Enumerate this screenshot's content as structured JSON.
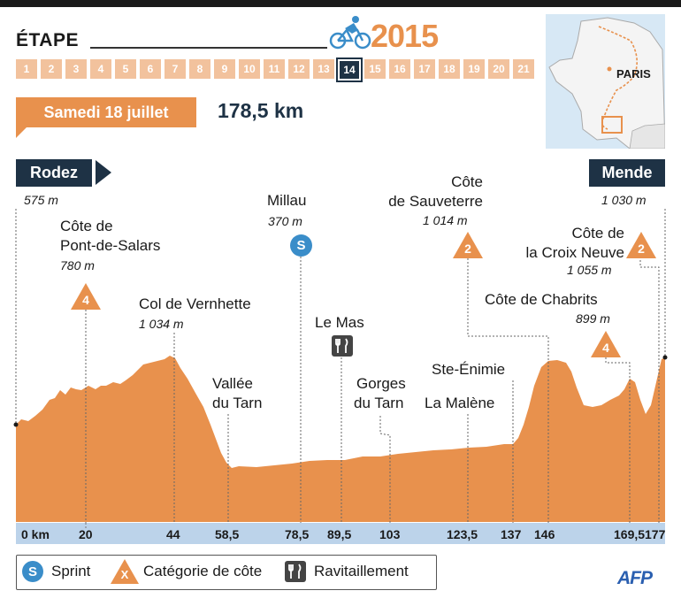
{
  "header": {
    "etape_label": "ÉTAPE",
    "year": "2015",
    "stages": [
      "1",
      "2",
      "3",
      "4",
      "5",
      "6",
      "7",
      "8",
      "9",
      "10",
      "11",
      "12",
      "13",
      "14",
      "15",
      "16",
      "17",
      "18",
      "19",
      "20",
      "21"
    ],
    "current_stage": "14",
    "date": "Samedi 18 juillet",
    "distance": "178,5 km"
  },
  "map": {
    "city_label": "PARIS"
  },
  "start": {
    "name": "Rodez",
    "altitude": "575 m"
  },
  "finish": {
    "name": "Mende",
    "altitude": "1 030 m"
  },
  "points": [
    {
      "name_l1": "Côte de",
      "name_l2": "Pont-de-Salars",
      "altitude": "780 m",
      "category": "4"
    },
    {
      "name_l1": "Col de Vernhette",
      "altitude": "1 034 m"
    },
    {
      "name_l1": "Vallée",
      "name_l2": "du Tarn"
    },
    {
      "name_l1": "Millau",
      "altitude": "370 m",
      "sprint_label": "S"
    },
    {
      "name_l1": "Le Mas"
    },
    {
      "name_l1": "Gorges",
      "name_l2": "du Tarn"
    },
    {
      "name_l1": "La Malène"
    },
    {
      "name_l1": "Ste-Énimie"
    },
    {
      "name_l1": "Côte",
      "name_l2": "de Sauveterre",
      "altitude": "1 014 m",
      "category": "2"
    },
    {
      "name_l1": "Côte de Chabrits",
      "altitude": "899 m",
      "category": "4"
    },
    {
      "name_l1": "Côte de",
      "name_l2": "la Croix Neuve",
      "altitude": "1 055 m",
      "category": "2"
    }
  ],
  "km_marks": [
    "0 km",
    "20",
    "44",
    "58,5",
    "78,5",
    "89,5",
    "103",
    "123,5",
    "137",
    "146",
    "169,5",
    "177"
  ],
  "legend": {
    "sprint_icon_text": "S",
    "sprint": "Sprint",
    "climb_icon_text": "X",
    "climb": "Catégorie de côte",
    "feed": "Ravitaillement"
  },
  "credit": "AFP",
  "colors": {
    "accent": "#e8914d",
    "navy": "#1e3245",
    "axis": "#bcd3ea",
    "profile": "#e8914d"
  }
}
